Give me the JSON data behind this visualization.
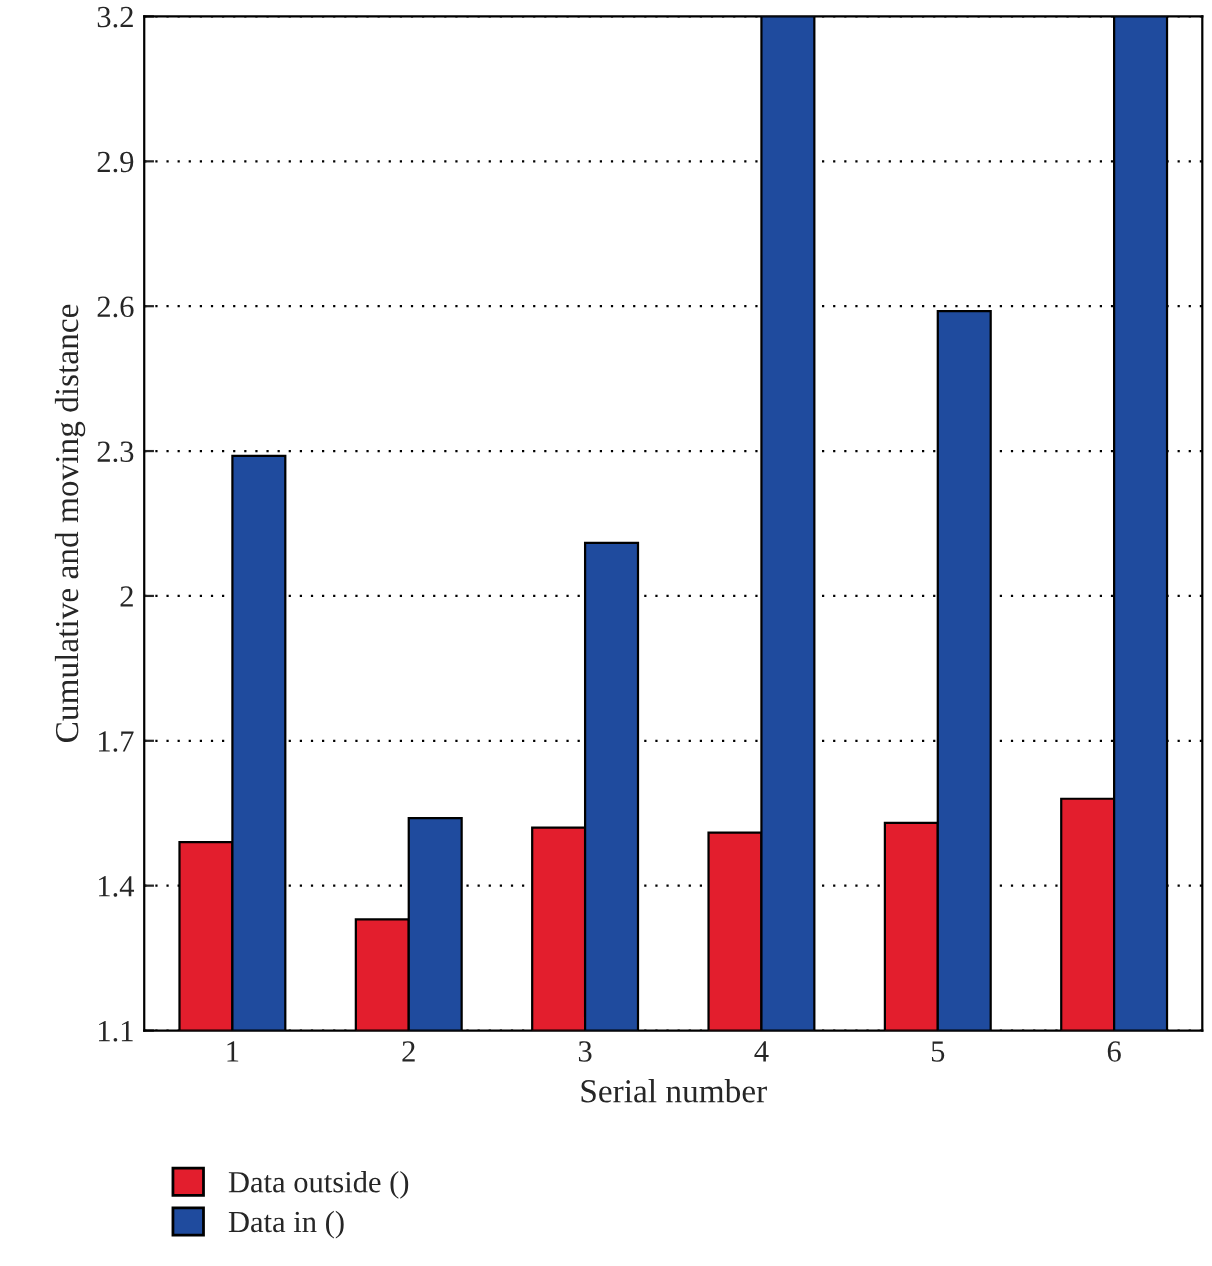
{
  "chart_data": {
    "type": "bar",
    "xlabel": "Serial number",
    "ylabel": "Cumulative and moving distance",
    "categories": [
      "1",
      "2",
      "3",
      "4",
      "5",
      "6"
    ],
    "series": [
      {
        "name": "Data outside ()",
        "color": "#e31e2d",
        "values": [
          1.49,
          1.33,
          1.52,
          1.51,
          1.53,
          1.58
        ]
      },
      {
        "name": "Data in ()",
        "color": "#1f4b9e",
        "values": [
          2.29,
          1.54,
          2.11,
          3.2,
          2.59,
          3.2
        ]
      }
    ],
    "ylim": [
      1.1,
      3.2
    ],
    "yticks": [
      1.1,
      1.4,
      1.7,
      2,
      2.3,
      2.6,
      2.9,
      3.2
    ],
    "grid": "y",
    "legend": "bottom"
  }
}
